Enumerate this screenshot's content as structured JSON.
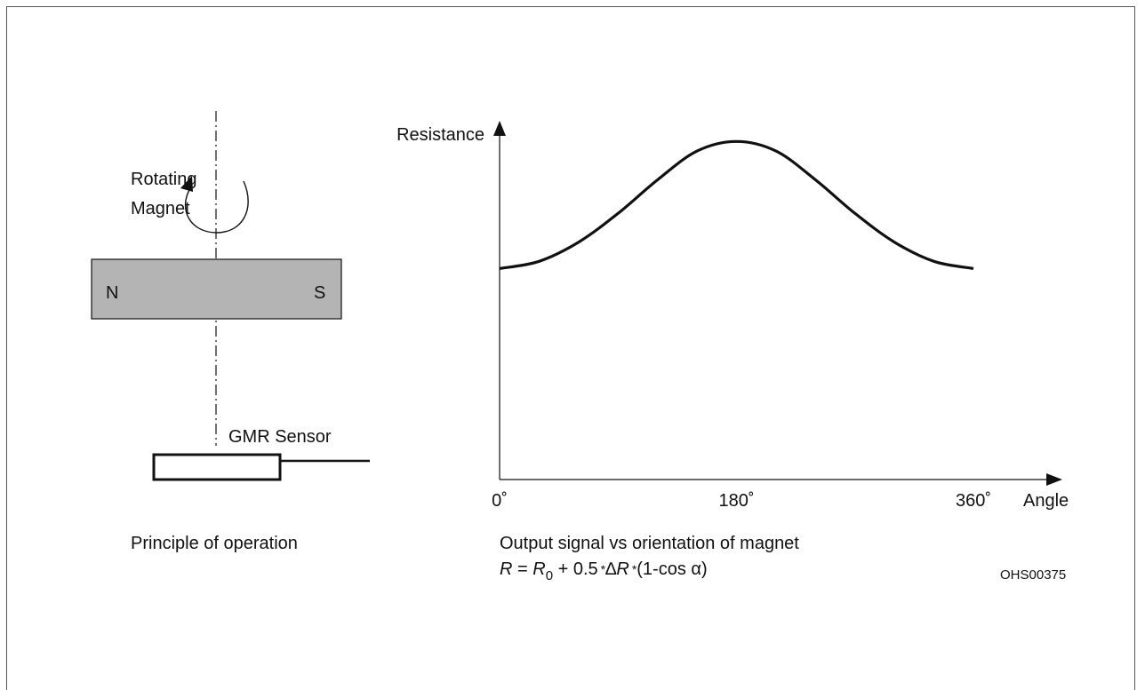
{
  "left_panel": {
    "rotation_label_line1": "Rotating",
    "rotation_label_line2": "Magnet",
    "pole_north": "N",
    "pole_south": "S",
    "sensor_label": "GMR Sensor",
    "caption": "Principle of operation"
  },
  "right_panel": {
    "caption": "Output signal vs orientation of magnet",
    "formula": {
      "R": "R",
      "eq": " = ",
      "R0_base": "R",
      "R0_sub": "0",
      "plus_half": " + 0.5",
      "mult1": "*",
      "delta": "∆",
      "dR": "R",
      "mult2": "*",
      "tail": "(1-cos α)"
    },
    "figure_code": "OHS00375"
  },
  "colors": {
    "magnet_fill": "#b4b4b4",
    "stroke": "#111111"
  },
  "chart_data": {
    "type": "line",
    "ylabel": "Resistance",
    "xlabel": "Angle",
    "x_ticks": [
      "0˚",
      "180˚",
      "360˚"
    ],
    "xlim": [
      0,
      360
    ],
    "ylim": [
      0,
      1
    ],
    "grid": false,
    "series": [
      {
        "x": [
          0,
          30,
          60,
          90,
          120,
          150,
          180,
          210,
          240,
          270,
          300,
          330,
          360
        ],
        "values": [
          0.44,
          0.455,
          0.495,
          0.555,
          0.625,
          0.685,
          0.705,
          0.685,
          0.625,
          0.555,
          0.495,
          0.455,
          0.44
        ]
      }
    ]
  }
}
